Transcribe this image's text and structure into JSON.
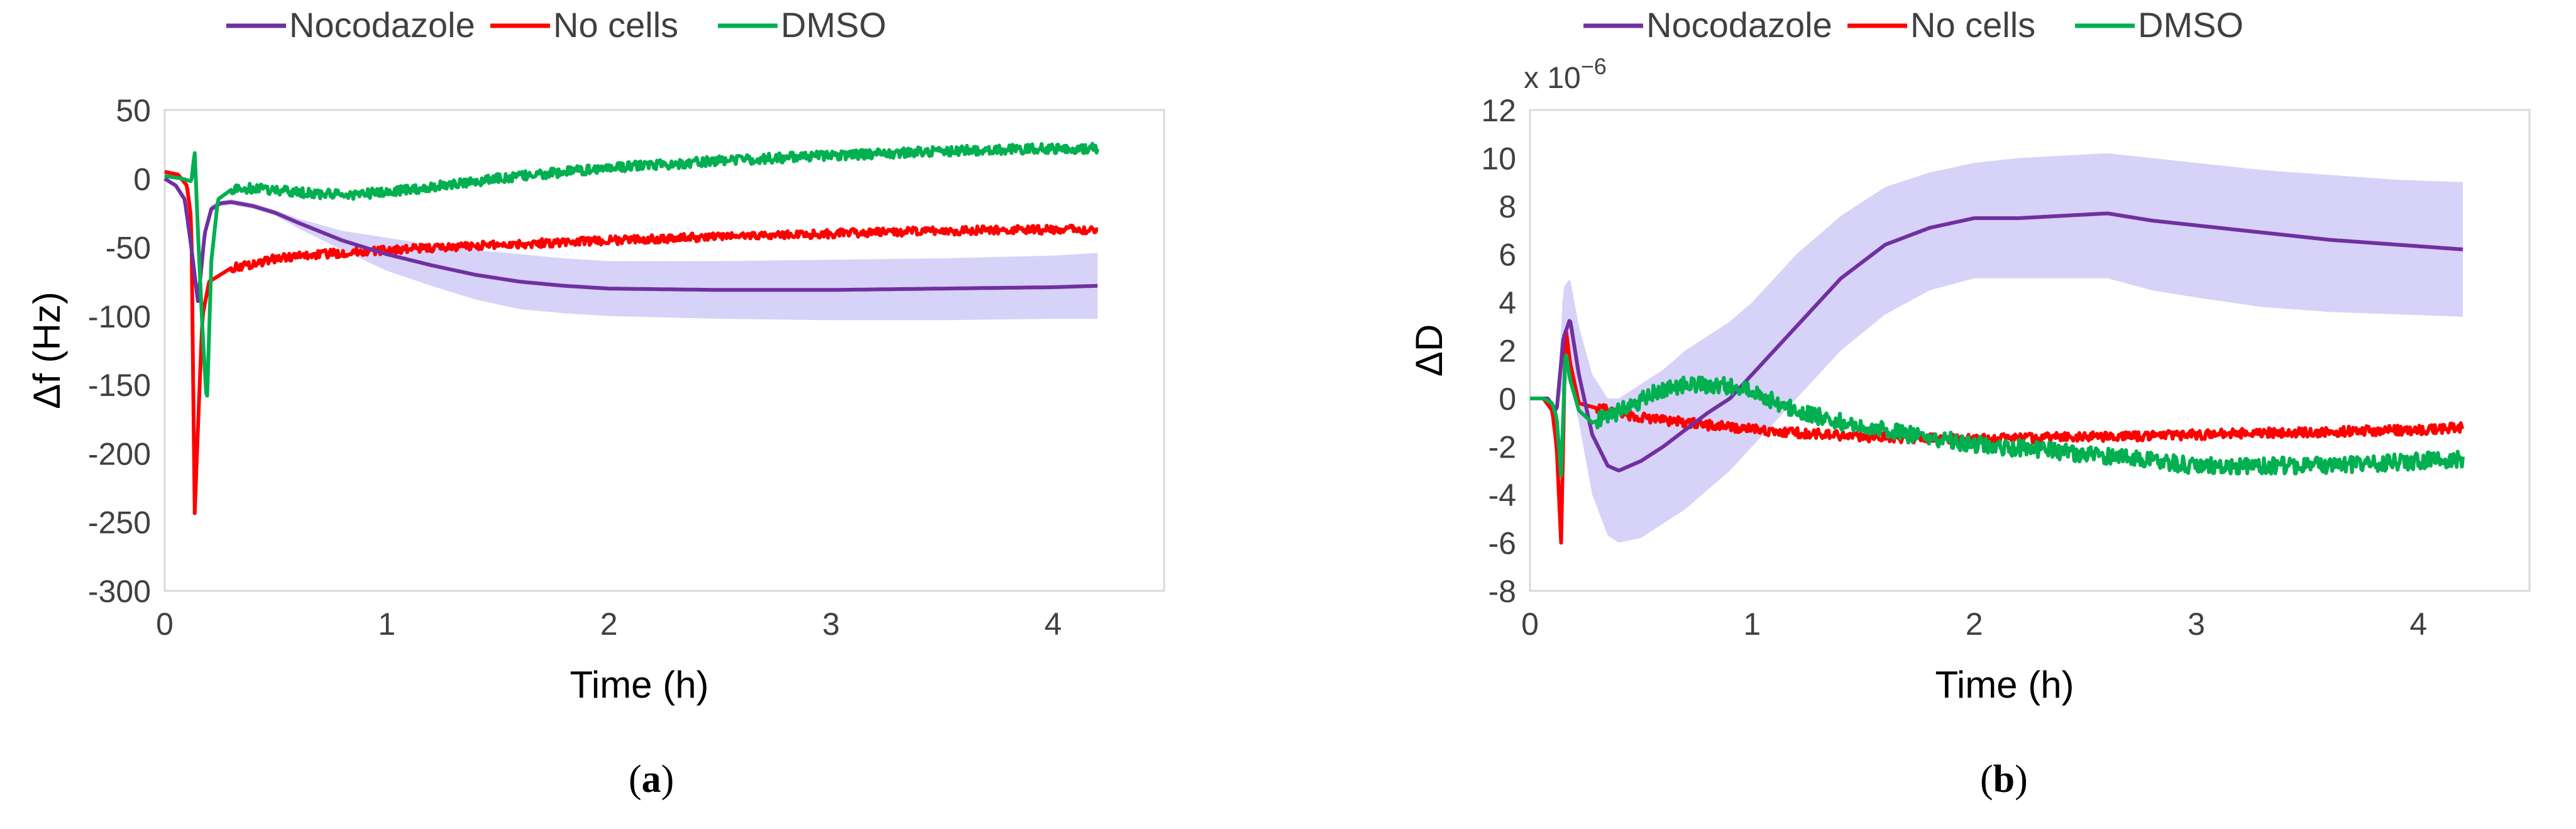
{
  "chart_data": [
    {
      "type": "line",
      "panel_label": "(a)",
      "caption_letter": "a",
      "xlabel": "Time (h)",
      "ylabel": "Δf (Hz)",
      "xlim": [
        0,
        4.5
      ],
      "ylim": [
        -300,
        50
      ],
      "xticks": [
        0,
        1,
        2,
        3,
        4
      ],
      "yticks": [
        50,
        0,
        -50,
        -100,
        -150,
        -200,
        -250,
        -300
      ],
      "grid": false,
      "legend_position": "top",
      "series": [
        {
          "name": "Nocodazole",
          "color": "#7030A0",
          "x": [
            0,
            0.05,
            0.09,
            0.12,
            0.15,
            0.18,
            0.21,
            0.25,
            0.3,
            0.4,
            0.5,
            0.6,
            0.8,
            1.0,
            1.2,
            1.4,
            1.6,
            1.8,
            2.0,
            2.5,
            3.0,
            3.5,
            4.0,
            4.2
          ],
          "y": [
            0,
            -5,
            -15,
            -50,
            -90,
            -40,
            -22,
            -18,
            -17,
            -20,
            -25,
            -32,
            -45,
            -55,
            -63,
            -70,
            -75,
            -78,
            -80,
            -81,
            -81,
            -80,
            -79,
            -78
          ],
          "band_lower": [
            0,
            -5,
            -15,
            -50,
            -90,
            -45,
            -25,
            -20,
            -19,
            -22,
            -27,
            -36,
            -52,
            -67,
            -78,
            -88,
            -95,
            -98,
            -100,
            -102,
            -103,
            -103,
            -102,
            -102
          ],
          "band_upper": [
            0,
            -5,
            -15,
            -50,
            -90,
            -35,
            -19,
            -16,
            -15,
            -18,
            -23,
            -29,
            -38,
            -43,
            -48,
            -52,
            -55,
            -58,
            -60,
            -60,
            -59,
            -58,
            -56,
            -54
          ]
        },
        {
          "name": "No cells",
          "color": "#FF0000",
          "x": [
            0,
            0.06,
            0.1,
            0.12,
            0.135,
            0.15,
            0.17,
            0.2,
            0.25,
            0.3,
            0.4,
            0.5,
            0.7,
            1.0,
            1.5,
            2.0,
            2.5,
            3.0,
            3.5,
            4.0,
            4.2
          ],
          "y": [
            5,
            3,
            -5,
            -30,
            -245,
            -180,
            -100,
            -75,
            -70,
            -65,
            -62,
            -58,
            -55,
            -52,
            -48,
            -45,
            -42,
            -40,
            -38,
            -37,
            -37
          ],
          "noise": 3
        },
        {
          "name": "DMSO",
          "color": "#00B050",
          "x": [
            0,
            0.08,
            0.12,
            0.135,
            0.15,
            0.17,
            0.19,
            0.21,
            0.24,
            0.3,
            0.4,
            0.6,
            0.8,
            1.0,
            1.5,
            2.0,
            2.5,
            3.0,
            3.5,
            4.0,
            4.2
          ],
          "y": [
            2,
            0,
            -2,
            20,
            -40,
            -110,
            -165,
            -60,
            -15,
            -8,
            -7,
            -10,
            -12,
            -10,
            0,
            8,
            13,
            17,
            20,
            22,
            22
          ],
          "noise": 3.5
        }
      ]
    },
    {
      "type": "line",
      "panel_label": "(b)",
      "caption_letter": "b",
      "xlabel": "Time (h)",
      "ylabel": "ΔD",
      "y_multiplier": "x 10",
      "y_multiplier_exp": "−6",
      "xlim": [
        0,
        4.5
      ],
      "ylim": [
        -8,
        12
      ],
      "xticks": [
        0,
        1,
        2,
        3,
        4
      ],
      "yticks": [
        12,
        10,
        8,
        6,
        4,
        2,
        0,
        -2,
        -4,
        -6,
        -8
      ],
      "grid": false,
      "legend_position": "top",
      "series": [
        {
          "name": "Nocodazole",
          "color": "#7030A0",
          "x": [
            0,
            0.08,
            0.12,
            0.15,
            0.18,
            0.22,
            0.28,
            0.35,
            0.4,
            0.5,
            0.6,
            0.7,
            0.8,
            0.9,
            1.0,
            1.2,
            1.4,
            1.6,
            1.8,
            2.0,
            2.2,
            2.4,
            2.6,
            2.8,
            3.0,
            3.3,
            3.6,
            3.9,
            4.2
          ],
          "y": [
            0,
            0,
            -0.5,
            2.5,
            3.3,
            1.0,
            -1.5,
            -2.8,
            -3.0,
            -2.6,
            -2.0,
            -1.3,
            -0.6,
            0.0,
            1.0,
            3.0,
            5.0,
            6.4,
            7.1,
            7.5,
            7.5,
            7.6,
            7.7,
            7.4,
            7.2,
            6.9,
            6.6,
            6.4,
            6.2
          ],
          "band_lower": [
            0,
            0,
            -0.5,
            0.5,
            1.0,
            -1.0,
            -4.0,
            -5.7,
            -6.0,
            -5.8,
            -5.2,
            -4.6,
            -3.8,
            -3.0,
            -2.0,
            0.0,
            2.0,
            3.5,
            4.5,
            5.0,
            5.0,
            5.0,
            5.0,
            4.5,
            4.2,
            3.8,
            3.6,
            3.5,
            3.4
          ],
          "band_upper": [
            0,
            0,
            -0.5,
            4.6,
            5.0,
            3.0,
            1.0,
            0.0,
            0.0,
            0.6,
            1.2,
            2.0,
            2.6,
            3.2,
            4.0,
            6.0,
            7.6,
            8.8,
            9.4,
            9.8,
            10.0,
            10.1,
            10.2,
            10.0,
            9.8,
            9.5,
            9.3,
            9.1,
            9.0
          ]
        },
        {
          "name": "No cells",
          "color": "#FF0000",
          "x": [
            0,
            0.06,
            0.1,
            0.12,
            0.14,
            0.16,
            0.18,
            0.22,
            0.3,
            0.5,
            1.0,
            1.5,
            2.0,
            2.5,
            3.0,
            3.5,
            4.0,
            4.2
          ],
          "y": [
            0,
            0,
            -0.5,
            -2,
            -6,
            3.0,
            1.5,
            -0.2,
            -0.4,
            -0.8,
            -1.3,
            -1.6,
            -1.7,
            -1.6,
            -1.5,
            -1.4,
            -1.3,
            -1.2
          ],
          "noise": 0.2
        },
        {
          "name": "DMSO",
          "color": "#00B050",
          "x": [
            0,
            0.06,
            0.1,
            0.12,
            0.14,
            0.16,
            0.18,
            0.22,
            0.28,
            0.35,
            0.45,
            0.6,
            0.75,
            0.9,
            1.0,
            1.2,
            1.5,
            1.8,
            2.0,
            2.5,
            3.0,
            3.5,
            4.0,
            4.2
          ],
          "y": [
            0,
            0,
            -0.2,
            -0.8,
            -3.2,
            2.0,
            0.8,
            -0.5,
            -1.0,
            -0.8,
            -0.3,
            0.4,
            0.6,
            0.5,
            0.3,
            -0.5,
            -1.2,
            -1.6,
            -1.9,
            -2.3,
            -2.8,
            -2.8,
            -2.6,
            -2.5
          ],
          "noise": 0.35
        }
      ]
    }
  ]
}
